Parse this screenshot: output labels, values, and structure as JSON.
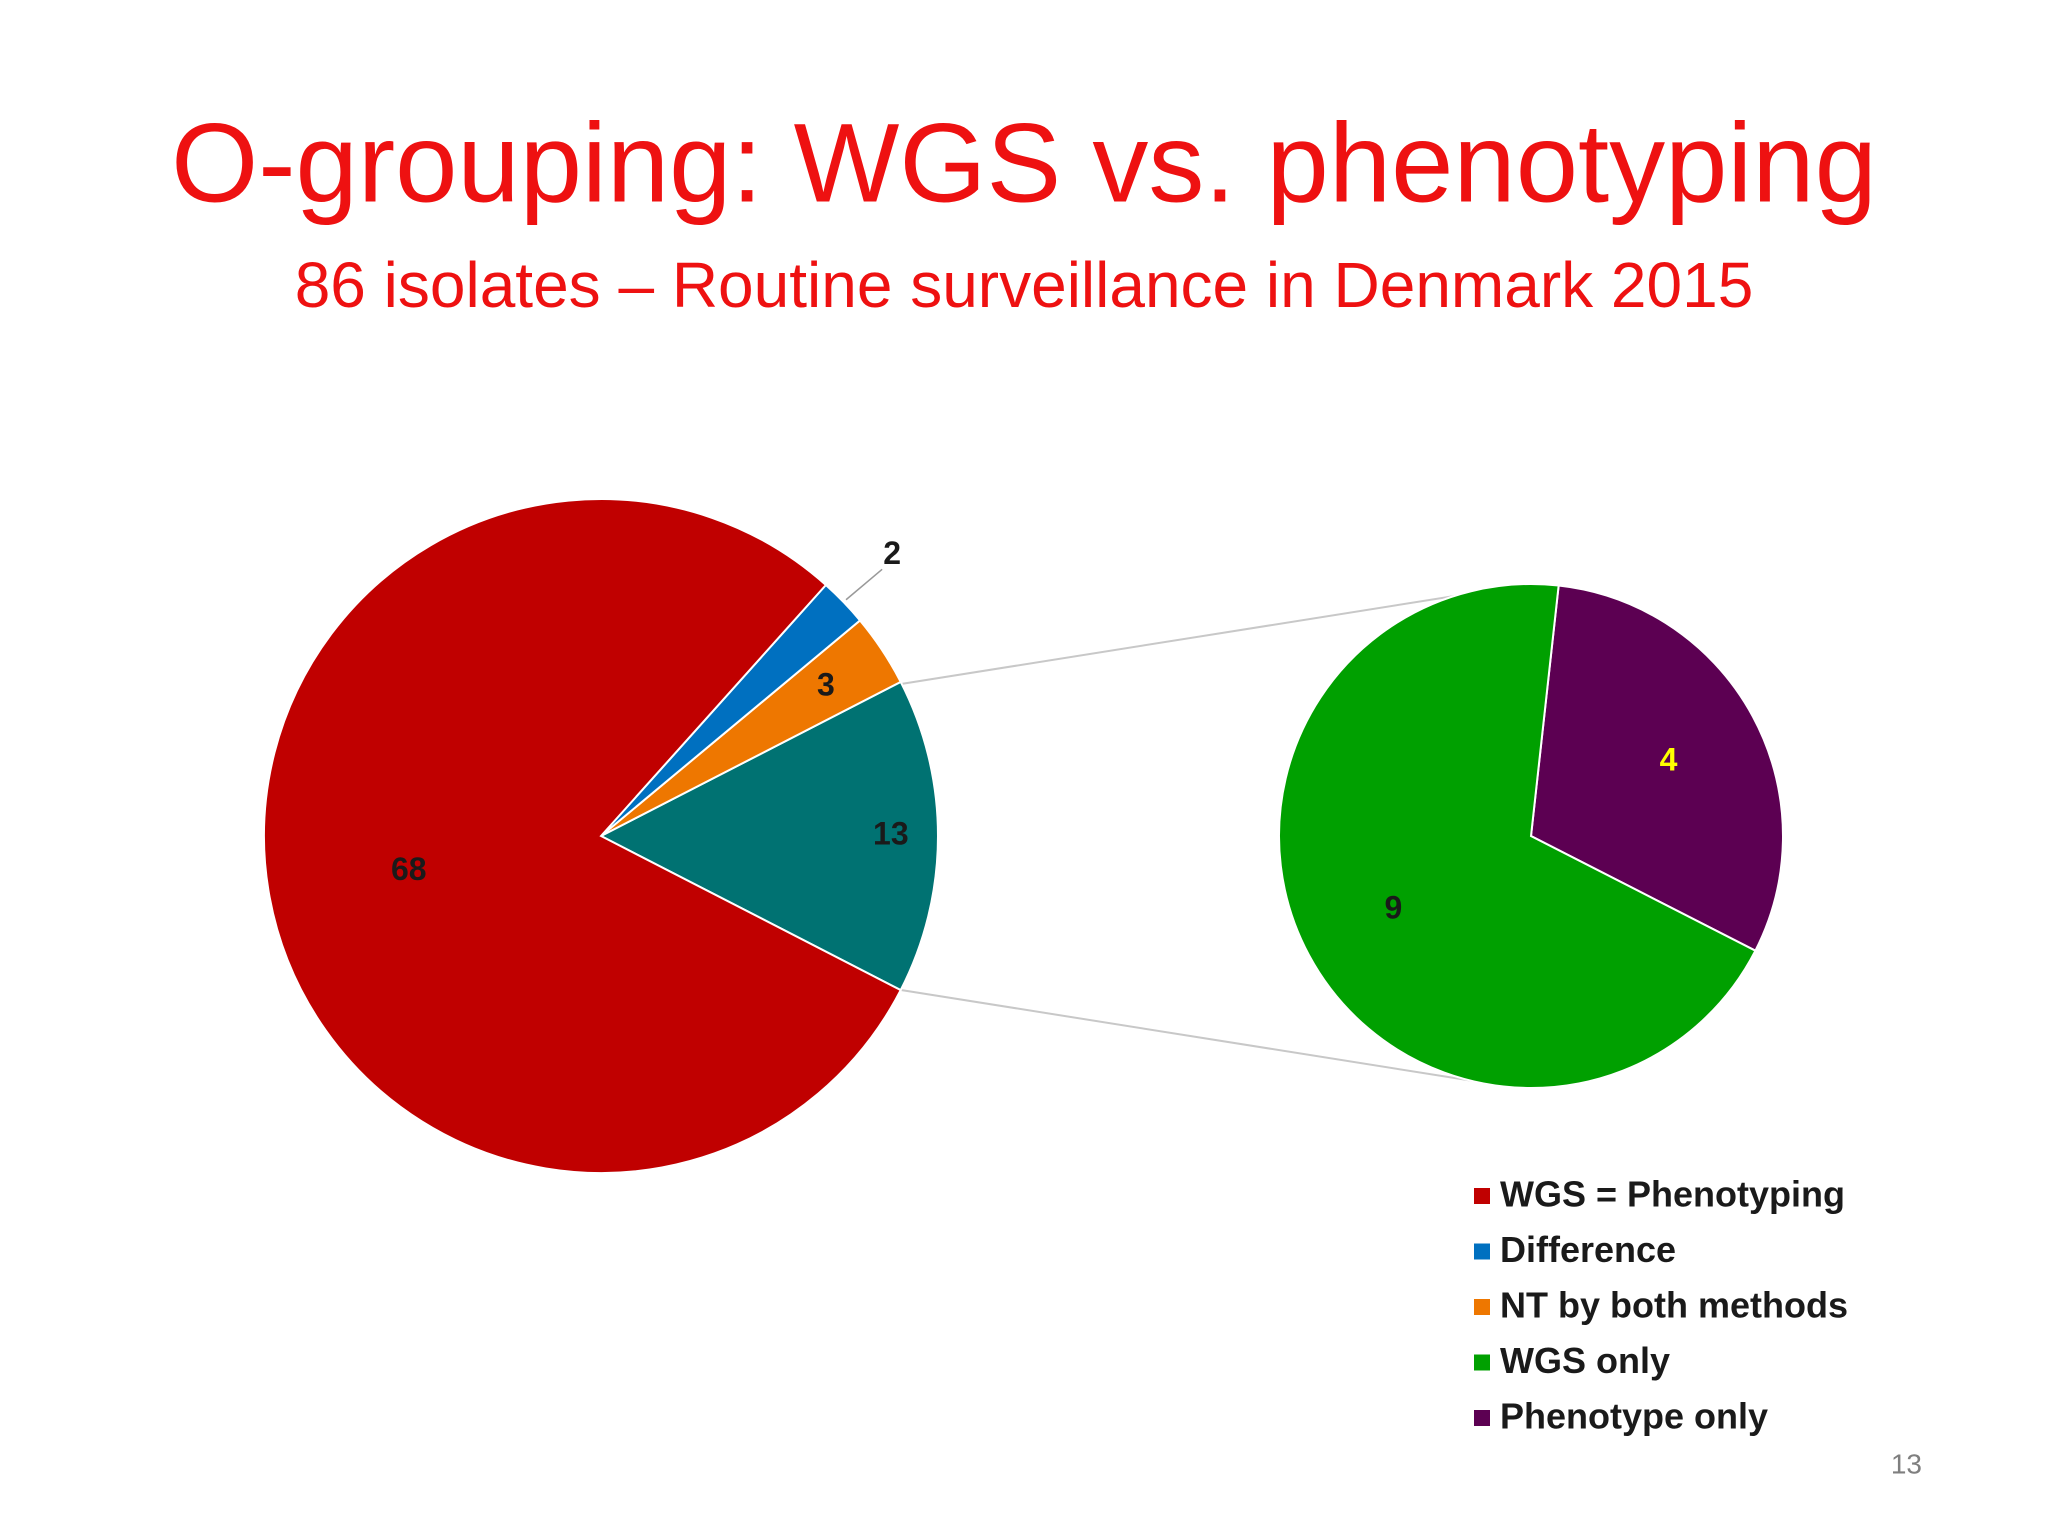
{
  "chart_data": {
    "type": "pie-of-pie",
    "title": "O-grouping: WGS vs. phenotyping",
    "subtitle": "86 isolates – Routine surveillance in Denmark 2015",
    "categories": [
      "WGS = Phenotyping",
      "Difference",
      "NT by both methods",
      null
    ],
    "values": [
      68,
      2,
      3,
      13
    ],
    "colors": [
      "#c00000",
      "#0070c0",
      "#ee7700",
      "#007272"
    ],
    "secondary": {
      "categories": [
        "WGS only",
        "Phenotype only"
      ],
      "values": [
        9,
        4
      ],
      "colors": [
        "#00a000",
        "#5c0052"
      ],
      "value_label_colors": [
        "#1a1a1a",
        "#ffff00"
      ]
    },
    "legend": "bottom-right"
  },
  "slide_number": 13
}
